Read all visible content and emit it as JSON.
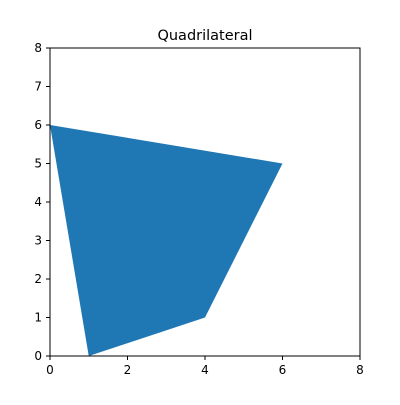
{
  "chart_data": {
    "type": "area",
    "title": "Quadrilateral",
    "xlabel": "",
    "ylabel": "",
    "xlim": [
      0,
      8
    ],
    "ylim": [
      0,
      8
    ],
    "x_ticks": [
      0,
      2,
      4,
      6,
      8
    ],
    "y_ticks": [
      0,
      1,
      2,
      3,
      4,
      5,
      6,
      7,
      8
    ],
    "grid": false,
    "legend": "none",
    "series": [
      {
        "kind": "filled-polygon",
        "color": "#1f77b4",
        "points": [
          {
            "x": 1,
            "y": 0
          },
          {
            "x": 4,
            "y": 1
          },
          {
            "x": 6,
            "y": 5
          },
          {
            "x": 0,
            "y": 6
          }
        ]
      }
    ]
  }
}
